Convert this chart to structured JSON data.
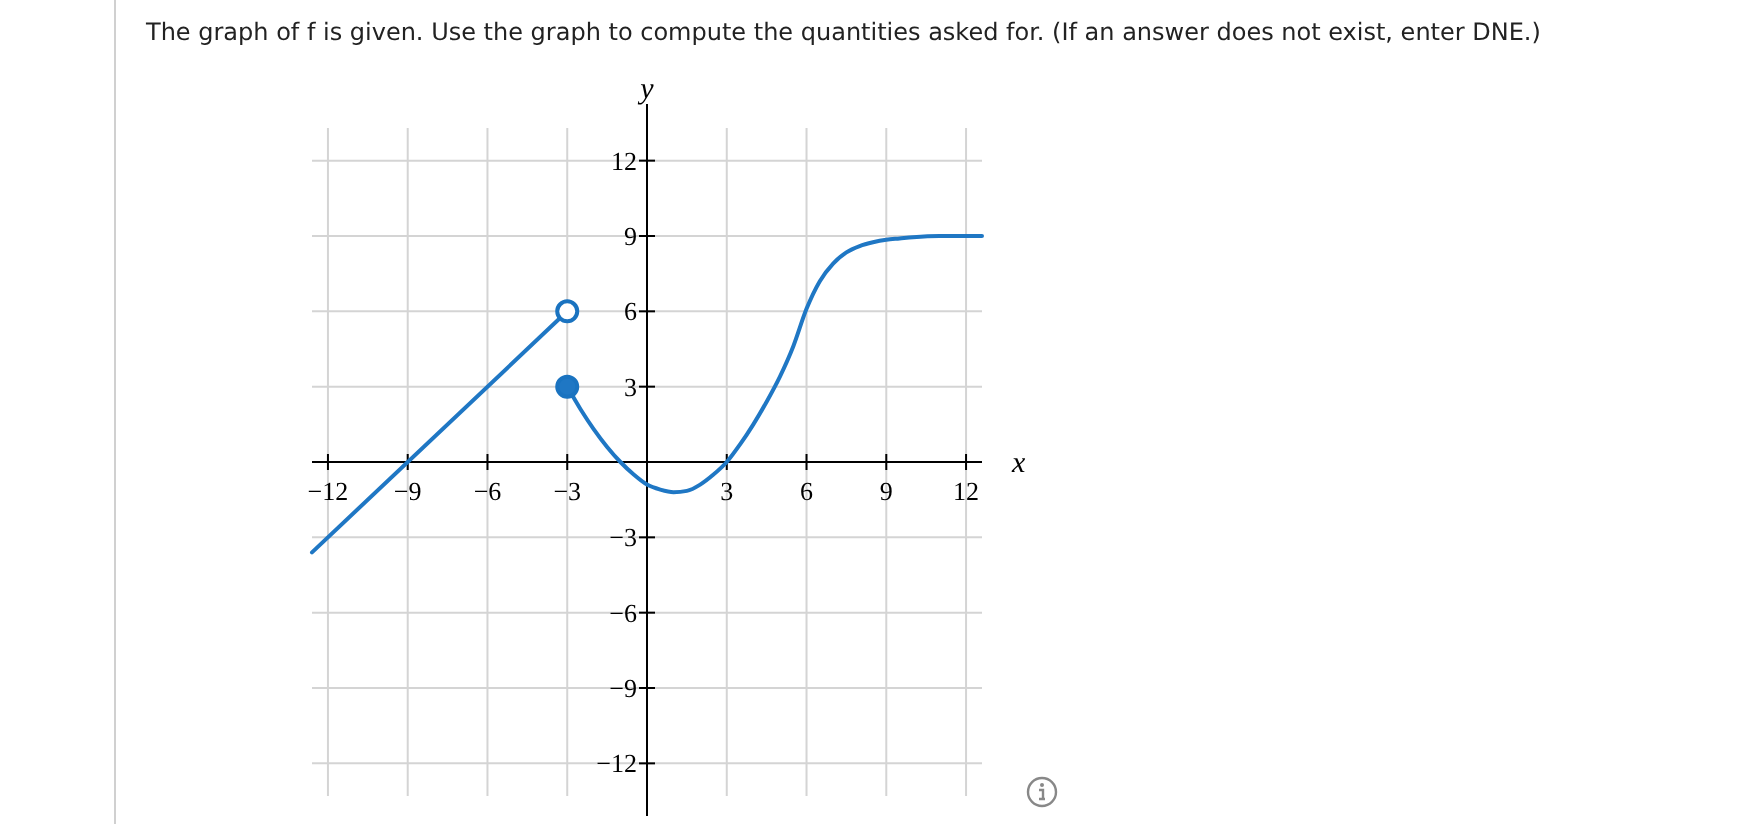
{
  "chart_data": {
    "type": "line",
    "title": "The graph of f is given. Use the graph to compute the quantities asked for. (If an answer does not exist, enter DNE.)",
    "xlabel": "x",
    "ylabel": "y",
    "xlim": [
      -12.6,
      12.6
    ],
    "ylim": [
      -13.3,
      13.3
    ],
    "xticks": [
      {
        "value": -12,
        "label": "−12"
      },
      {
        "value": -9,
        "label": "−9"
      },
      {
        "value": -6,
        "label": "−6"
      },
      {
        "value": -3,
        "label": "−3"
      },
      3,
      6,
      9,
      12
    ],
    "yticks": [
      {
        "value": -12,
        "label": "−12"
      },
      {
        "value": -9,
        "label": "−9"
      },
      {
        "value": -6,
        "label": "−6"
      },
      {
        "value": -3,
        "label": "−3"
      },
      3,
      6,
      9,
      12
    ],
    "grid": true,
    "series": [
      {
        "color": "#1f77c4",
        "x": [
          -12.6,
          -3
        ],
        "values": [
          -3.6,
          6
        ]
      },
      {
        "color": "#1f77c4",
        "x": [
          -3,
          -2.5,
          -2,
          -1.5,
          -1,
          -0.5,
          0,
          0.5,
          1,
          1.5,
          2,
          2.5,
          3,
          3.5,
          4,
          4.5,
          5,
          5.5,
          6,
          6.5,
          7,
          7.5,
          8,
          8.5,
          9,
          9.5,
          10,
          11,
          12,
          12.6
        ],
        "values": [
          3,
          2.1,
          1.3,
          0.6,
          0,
          -0.5,
          -0.9,
          -1.1,
          -1.2,
          -1.15,
          -0.9,
          -0.5,
          0,
          0.7,
          1.5,
          2.4,
          3.4,
          4.6,
          6.1,
          7.2,
          7.9,
          8.35,
          8.6,
          8.75,
          8.85,
          8.9,
          8.95,
          9,
          9,
          9
        ]
      },
      {
        "type": "scatter",
        "color": "#ffffff",
        "x": [
          -3
        ],
        "values": [
          6
        ]
      },
      {
        "type": "scatter",
        "color": "#1f77c4",
        "x": [
          -3
        ],
        "values": [
          3
        ]
      }
    ]
  }
}
